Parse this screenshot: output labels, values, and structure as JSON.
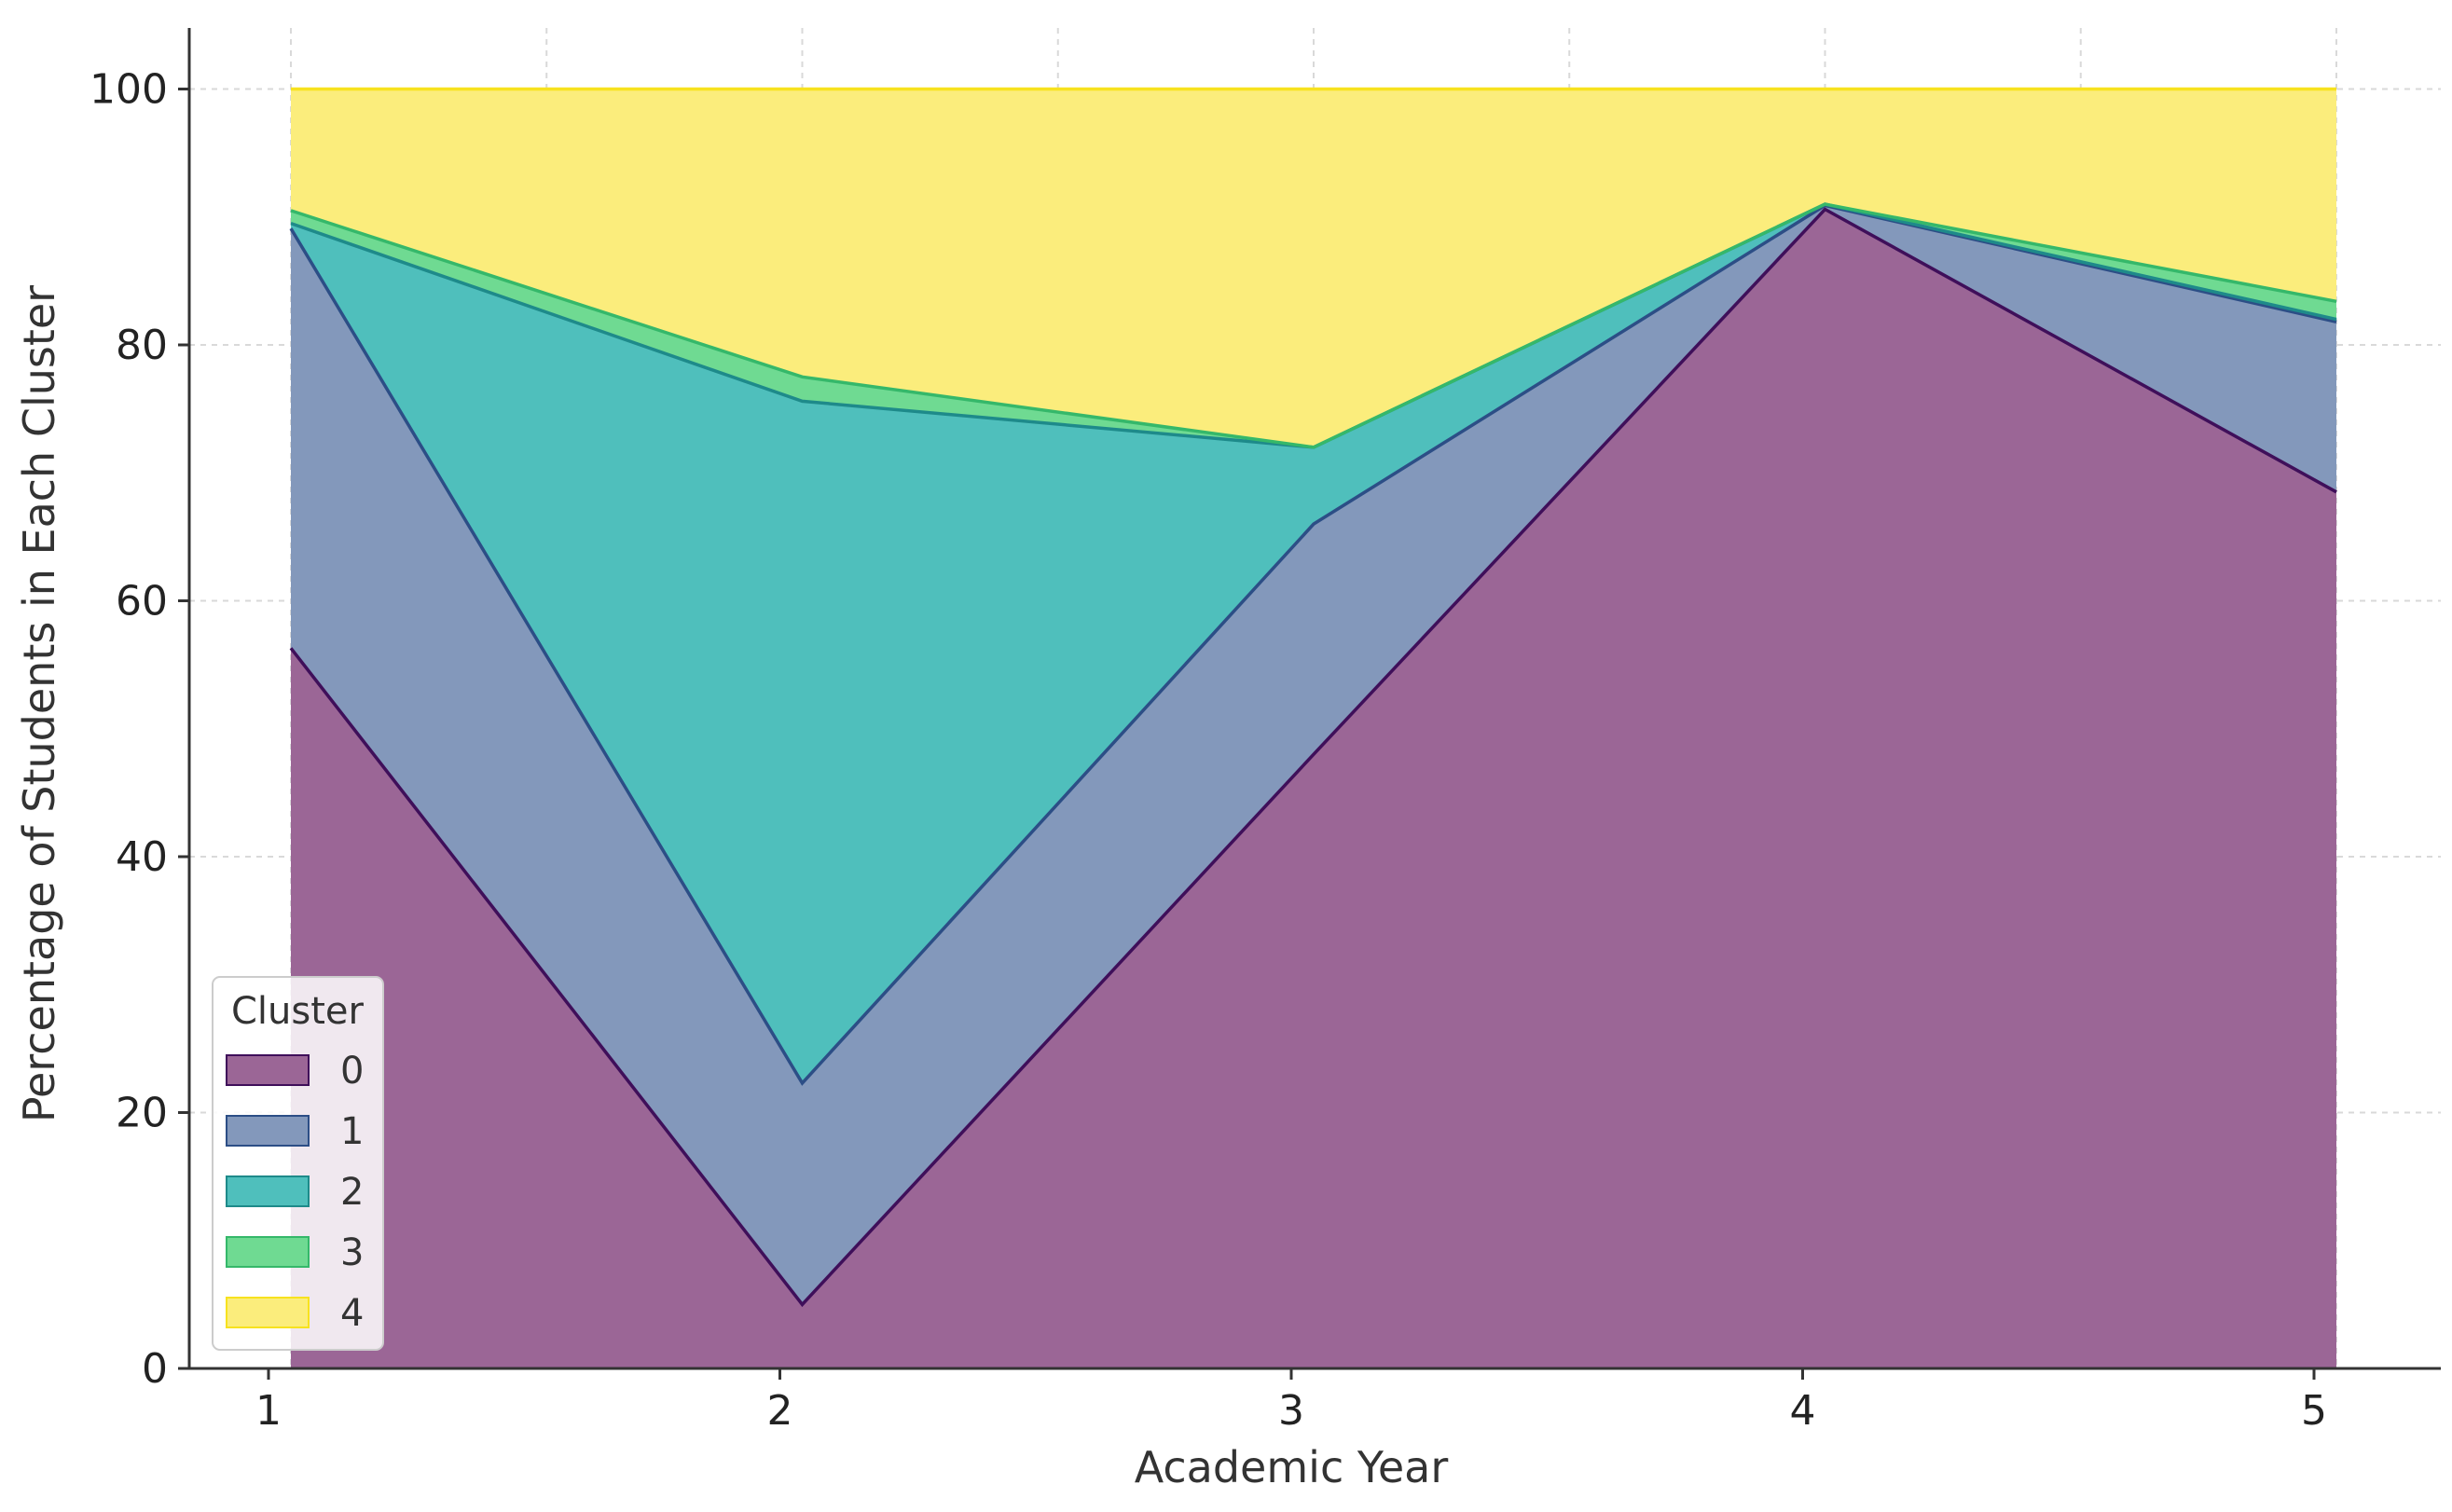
{
  "chart_data": {
    "type": "area",
    "stacked": true,
    "xlabel": "Academic Year",
    "ylabel": "Percentage of Students in Each Cluster",
    "x": [
      1,
      2,
      3,
      4,
      5
    ],
    "x_ticks": [
      "1",
      "2",
      "3",
      "4",
      "5"
    ],
    "ylim": [
      0,
      105
    ],
    "y_ticks": [
      "0",
      "20",
      "40",
      "60",
      "80",
      "100"
    ],
    "grid": true,
    "legend": {
      "title": "Cluster",
      "position": "lower-left"
    },
    "series": [
      {
        "name": "0",
        "color": "#9b6696",
        "line": "#3f0f5a",
        "values": [
          56.3,
          5.0,
          48.0,
          90.6,
          68.5
        ]
      },
      {
        "name": "1",
        "color": "#8398bb",
        "line": "#2c4e86",
        "values": [
          32.8,
          17.3,
          18.0,
          0.3,
          13.3
        ]
      },
      {
        "name": "2",
        "color": "#4fbfbc",
        "line": "#1e8a8a",
        "values": [
          0.4,
          53.3,
          6.0,
          0.1,
          0.2
        ]
      },
      {
        "name": "3",
        "color": "#6fda92",
        "line": "#35b86a",
        "values": [
          1.0,
          1.9,
          0.0,
          0.0,
          1.4
        ]
      },
      {
        "name": "4",
        "color": "#fbed7c",
        "line": "#f7e21e",
        "values": [
          9.5,
          22.5,
          28.0,
          9.0,
          16.6
        ]
      }
    ]
  }
}
